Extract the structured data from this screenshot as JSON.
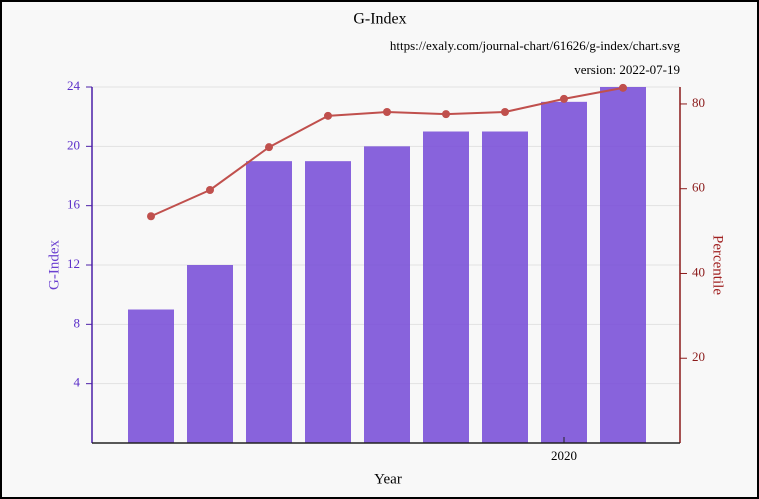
{
  "chart_data": {
    "type": "bar",
    "title": "G-Index",
    "subtitle": "https://exaly.com/journal-chart/61626/g-index/chart.svg",
    "version": "version: 2022-07-19",
    "x_label": "Year",
    "y_label": "G-Index",
    "y2_label": "Percentile",
    "categories": [
      null,
      null,
      null,
      null,
      null,
      null,
      null,
      "2020",
      null
    ],
    "series": [
      {
        "name": "G-Index",
        "type": "bar",
        "color": "#7b52d8",
        "values": [
          9,
          12,
          19,
          19,
          20,
          21,
          21,
          23,
          24
        ]
      },
      {
        "name": "Percentile",
        "type": "line",
        "axis": "y2",
        "color": "#c0504d",
        "values": [
          53.5,
          59.7,
          69.8,
          77.2,
          78.1,
          77.6,
          78.1,
          81.2,
          83.8
        ]
      }
    ],
    "ylim": [
      0,
      24
    ],
    "yticks": [
      4,
      8,
      12,
      16,
      20,
      24
    ],
    "y2lim": [
      0,
      84
    ],
    "y2ticks": [
      20,
      40,
      60,
      80
    ],
    "grid": true
  }
}
